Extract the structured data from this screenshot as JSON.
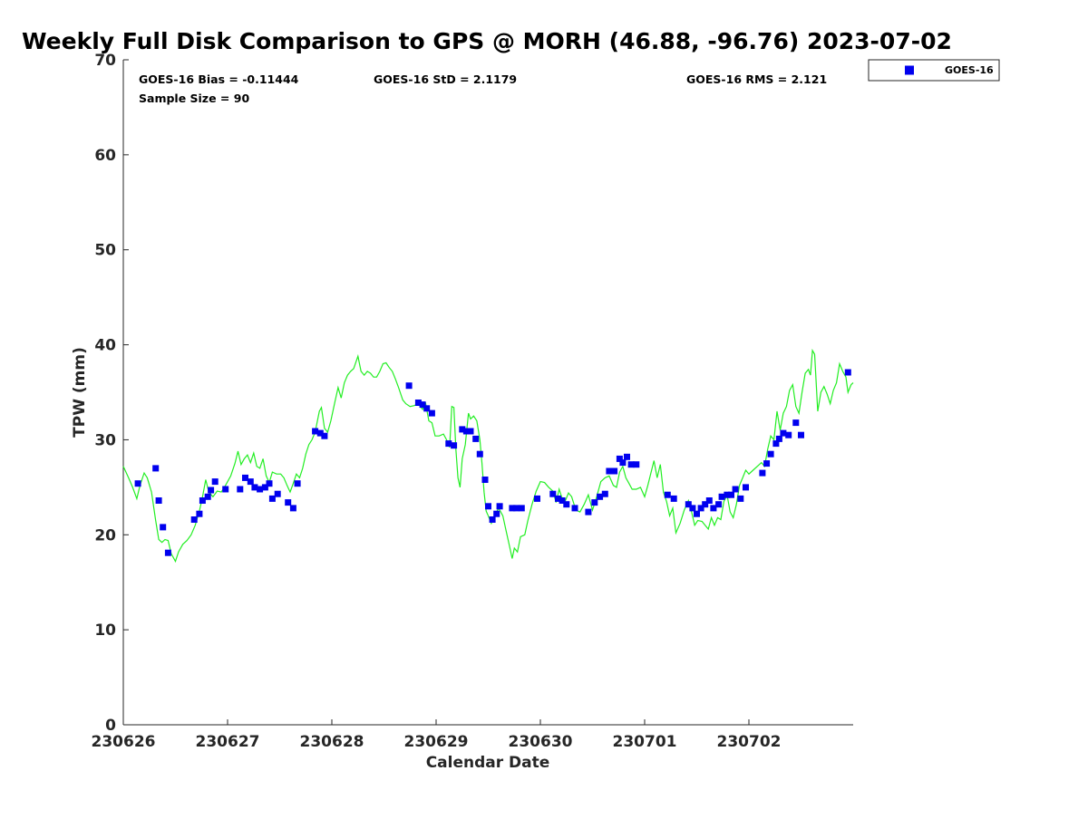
{
  "chart_data": {
    "type": "scatter",
    "title": "Weekly Full Disk Comparison to GPS @ MORH (46.88, -96.76) 2023-07-02",
    "xlabel": "Calendar Date",
    "ylabel": "TPW (mm)",
    "xlim": [
      0,
      7
    ],
    "ylim": [
      0,
      70
    ],
    "x_ticks": [
      0,
      1,
      2,
      3,
      4,
      5,
      6
    ],
    "x_tick_labels": [
      "230626",
      "230627",
      "230628",
      "230629",
      "230630",
      "230701",
      "230702"
    ],
    "y_ticks": [
      0,
      10,
      20,
      30,
      40,
      50,
      60,
      70
    ],
    "y_tick_labels": [
      "0",
      "10",
      "20",
      "30",
      "40",
      "50",
      "60",
      "70"
    ],
    "x_unit": "days since 230626 00:00 (start of 230626)",
    "stats": {
      "bias": "GOES-16 Bias = -0.11444",
      "std": "GOES-16 StD = 2.1179",
      "rms": "GOES-16 RMS = 2.121",
      "sample": "Sample Size = 90"
    },
    "legend": {
      "label": "GOES-16",
      "position": "outside-top-right"
    },
    "series": [
      {
        "name": "GOES-16",
        "kind": "scatter",
        "marker": "square",
        "color": "#0000ee",
        "points": [
          [
            0.14,
            25.4
          ],
          [
            0.31,
            27.0
          ],
          [
            0.34,
            23.6
          ],
          [
            0.38,
            20.8
          ],
          [
            0.43,
            18.1
          ],
          [
            0.68,
            21.6
          ],
          [
            0.73,
            22.2
          ],
          [
            0.76,
            23.6
          ],
          [
            0.81,
            24.0
          ],
          [
            0.84,
            24.7
          ],
          [
            0.88,
            25.6
          ],
          [
            0.98,
            24.8
          ],
          [
            1.12,
            24.8
          ],
          [
            1.17,
            26.0
          ],
          [
            1.22,
            25.6
          ],
          [
            1.26,
            25.0
          ],
          [
            1.31,
            24.8
          ],
          [
            1.36,
            25.0
          ],
          [
            1.4,
            25.4
          ],
          [
            1.43,
            23.8
          ],
          [
            1.48,
            24.3
          ],
          [
            1.58,
            23.4
          ],
          [
            1.63,
            22.8
          ],
          [
            1.67,
            25.4
          ],
          [
            1.84,
            30.9
          ],
          [
            1.89,
            30.7
          ],
          [
            1.93,
            30.4
          ],
          [
            2.74,
            35.7
          ],
          [
            2.83,
            33.9
          ],
          [
            2.87,
            33.7
          ],
          [
            2.91,
            33.3
          ],
          [
            2.96,
            32.8
          ],
          [
            3.12,
            29.6
          ],
          [
            3.17,
            29.4
          ],
          [
            3.25,
            31.1
          ],
          [
            3.29,
            30.9
          ],
          [
            3.33,
            30.9
          ],
          [
            3.38,
            30.1
          ],
          [
            3.42,
            28.5
          ],
          [
            3.47,
            25.8
          ],
          [
            3.5,
            23.0
          ],
          [
            3.54,
            21.6
          ],
          [
            3.58,
            22.2
          ],
          [
            3.61,
            23.0
          ],
          [
            3.73,
            22.8
          ],
          [
            3.77,
            22.8
          ],
          [
            3.82,
            22.8
          ],
          [
            3.97,
            23.8
          ],
          [
            4.12,
            24.3
          ],
          [
            4.17,
            23.8
          ],
          [
            4.21,
            23.6
          ],
          [
            4.25,
            23.2
          ],
          [
            4.33,
            22.8
          ],
          [
            4.46,
            22.4
          ],
          [
            4.52,
            23.4
          ],
          [
            4.57,
            24.0
          ],
          [
            4.62,
            24.3
          ],
          [
            4.66,
            26.7
          ],
          [
            4.71,
            26.7
          ],
          [
            4.76,
            28.0
          ],
          [
            4.79,
            27.6
          ],
          [
            4.83,
            28.2
          ],
          [
            4.87,
            27.4
          ],
          [
            4.92,
            27.4
          ],
          [
            5.22,
            24.2
          ],
          [
            5.28,
            23.8
          ],
          [
            5.42,
            23.2
          ],
          [
            5.46,
            22.8
          ],
          [
            5.5,
            22.2
          ],
          [
            5.54,
            22.8
          ],
          [
            5.58,
            23.2
          ],
          [
            5.62,
            23.6
          ],
          [
            5.66,
            22.8
          ],
          [
            5.71,
            23.2
          ],
          [
            5.74,
            24.0
          ],
          [
            5.79,
            24.2
          ],
          [
            5.83,
            24.2
          ],
          [
            5.87,
            24.8
          ],
          [
            5.92,
            23.8
          ],
          [
            5.97,
            25.0
          ],
          [
            6.13,
            26.5
          ],
          [
            6.17,
            27.5
          ],
          [
            6.21,
            28.5
          ],
          [
            6.26,
            29.6
          ],
          [
            6.29,
            30.1
          ],
          [
            6.33,
            30.7
          ],
          [
            6.38,
            30.5
          ],
          [
            6.45,
            31.8
          ],
          [
            6.5,
            30.5
          ],
          [
            6.95,
            37.1
          ]
        ]
      },
      {
        "name": "",
        "kind": "line",
        "color": "#22ee22",
        "points": [
          [
            0.0,
            27.2
          ],
          [
            0.05,
            26.0
          ],
          [
            0.09,
            25.0
          ],
          [
            0.13,
            23.8
          ],
          [
            0.16,
            25.2
          ],
          [
            0.2,
            26.5
          ],
          [
            0.23,
            26.0
          ],
          [
            0.27,
            24.5
          ],
          [
            0.31,
            21.5
          ],
          [
            0.34,
            19.5
          ],
          [
            0.37,
            19.2
          ],
          [
            0.4,
            19.5
          ],
          [
            0.43,
            19.4
          ],
          [
            0.46,
            18.0
          ],
          [
            0.5,
            17.2
          ],
          [
            0.53,
            18.2
          ],
          [
            0.57,
            19.0
          ],
          [
            0.61,
            19.4
          ],
          [
            0.65,
            20.0
          ],
          [
            0.69,
            21.0
          ],
          [
            0.73,
            22.5
          ],
          [
            0.76,
            24.0
          ],
          [
            0.79,
            25.8
          ],
          [
            0.82,
            24.5
          ],
          [
            0.86,
            24.0
          ],
          [
            0.9,
            24.6
          ],
          [
            0.94,
            24.5
          ],
          [
            0.98,
            25.2
          ],
          [
            1.03,
            26.2
          ],
          [
            1.07,
            27.5
          ],
          [
            1.1,
            28.8
          ],
          [
            1.13,
            27.4
          ],
          [
            1.16,
            28.0
          ],
          [
            1.19,
            28.4
          ],
          [
            1.22,
            27.6
          ],
          [
            1.25,
            28.6
          ],
          [
            1.28,
            27.2
          ],
          [
            1.31,
            27.0
          ],
          [
            1.34,
            28.0
          ],
          [
            1.37,
            26.2
          ],
          [
            1.4,
            25.5
          ],
          [
            1.43,
            26.6
          ],
          [
            1.47,
            26.4
          ],
          [
            1.51,
            26.4
          ],
          [
            1.54,
            26.0
          ],
          [
            1.57,
            25.2
          ],
          [
            1.6,
            24.5
          ],
          [
            1.63,
            25.4
          ],
          [
            1.66,
            26.4
          ],
          [
            1.69,
            26.0
          ],
          [
            1.72,
            27.0
          ],
          [
            1.75,
            28.5
          ],
          [
            1.78,
            29.5
          ],
          [
            1.81,
            30.0
          ],
          [
            1.84,
            30.8
          ],
          [
            1.88,
            33.0
          ],
          [
            1.9,
            33.4
          ],
          [
            1.93,
            31.2
          ],
          [
            1.96,
            30.8
          ],
          [
            1.99,
            32.0
          ],
          [
            2.03,
            34.0
          ],
          [
            2.06,
            35.5
          ],
          [
            2.09,
            34.4
          ],
          [
            2.12,
            36.0
          ],
          [
            2.15,
            36.8
          ],
          [
            2.18,
            37.2
          ],
          [
            2.21,
            37.5
          ],
          [
            2.25,
            38.8
          ],
          [
            2.28,
            37.2
          ],
          [
            2.31,
            36.8
          ],
          [
            2.34,
            37.2
          ],
          [
            2.37,
            37.0
          ],
          [
            2.4,
            36.6
          ],
          [
            2.43,
            36.6
          ],
          [
            2.46,
            37.2
          ],
          [
            2.49,
            38.0
          ],
          [
            2.52,
            38.1
          ],
          [
            2.55,
            37.6
          ],
          [
            2.58,
            37.2
          ],
          [
            2.61,
            36.4
          ],
          [
            2.64,
            35.5
          ],
          [
            2.68,
            34.2
          ],
          [
            2.71,
            33.8
          ],
          [
            2.75,
            33.5
          ],
          [
            2.79,
            33.6
          ],
          [
            2.83,
            33.8
          ],
          [
            2.87,
            33.2
          ],
          [
            2.9,
            33.8
          ],
          [
            2.93,
            32.0
          ],
          [
            2.96,
            31.8
          ],
          [
            2.99,
            30.4
          ],
          [
            3.03,
            30.4
          ],
          [
            3.07,
            30.6
          ],
          [
            3.1,
            30.0
          ],
          [
            3.13,
            29.2
          ],
          [
            3.15,
            33.5
          ],
          [
            3.17,
            33.4
          ],
          [
            3.19,
            29.0
          ],
          [
            3.21,
            26.0
          ],
          [
            3.23,
            25.0
          ],
          [
            3.25,
            28.0
          ],
          [
            3.28,
            29.5
          ],
          [
            3.31,
            32.8
          ],
          [
            3.33,
            32.2
          ],
          [
            3.36,
            32.5
          ],
          [
            3.39,
            32.0
          ],
          [
            3.42,
            30.0
          ],
          [
            3.44,
            27.5
          ],
          [
            3.46,
            24.5
          ],
          [
            3.48,
            22.5
          ],
          [
            3.5,
            22.0
          ],
          [
            3.53,
            21.2
          ],
          [
            3.56,
            22.0
          ],
          [
            3.6,
            22.8
          ],
          [
            3.64,
            22.0
          ],
          [
            3.67,
            20.5
          ],
          [
            3.7,
            19.0
          ],
          [
            3.73,
            17.5
          ],
          [
            3.75,
            18.6
          ],
          [
            3.78,
            18.2
          ],
          [
            3.81,
            19.8
          ],
          [
            3.85,
            20.0
          ],
          [
            3.88,
            21.5
          ],
          [
            3.92,
            23.2
          ],
          [
            3.96,
            24.6
          ],
          [
            4.0,
            25.6
          ],
          [
            4.04,
            25.5
          ],
          [
            4.08,
            25.0
          ],
          [
            4.12,
            24.6
          ],
          [
            4.15,
            23.4
          ],
          [
            4.18,
            24.8
          ],
          [
            4.21,
            23.8
          ],
          [
            4.24,
            23.6
          ],
          [
            4.27,
            24.4
          ],
          [
            4.3,
            24.0
          ],
          [
            4.34,
            22.6
          ],
          [
            4.38,
            22.4
          ],
          [
            4.42,
            23.2
          ],
          [
            4.46,
            24.2
          ],
          [
            4.5,
            22.6
          ],
          [
            4.54,
            24.0
          ],
          [
            4.58,
            25.6
          ],
          [
            4.62,
            26.0
          ],
          [
            4.66,
            26.2
          ],
          [
            4.7,
            25.2
          ],
          [
            4.73,
            25.0
          ],
          [
            4.76,
            26.6
          ],
          [
            4.79,
            27.2
          ],
          [
            4.82,
            26.0
          ],
          [
            4.85,
            25.4
          ],
          [
            4.88,
            24.8
          ],
          [
            4.92,
            24.8
          ],
          [
            4.96,
            25.0
          ],
          [
            5.0,
            24.0
          ],
          [
            5.03,
            25.2
          ],
          [
            5.06,
            26.5
          ],
          [
            5.09,
            27.8
          ],
          [
            5.12,
            26.0
          ],
          [
            5.15,
            27.4
          ],
          [
            5.18,
            24.5
          ],
          [
            5.21,
            23.5
          ],
          [
            5.24,
            22.0
          ],
          [
            5.27,
            22.8
          ],
          [
            5.3,
            20.2
          ],
          [
            5.34,
            21.2
          ],
          [
            5.38,
            22.6
          ],
          [
            5.42,
            23.6
          ],
          [
            5.45,
            22.4
          ],
          [
            5.48,
            21.0
          ],
          [
            5.51,
            21.5
          ],
          [
            5.55,
            21.4
          ],
          [
            5.58,
            21.0
          ],
          [
            5.61,
            20.6
          ],
          [
            5.64,
            21.8
          ],
          [
            5.67,
            21.0
          ],
          [
            5.7,
            21.8
          ],
          [
            5.73,
            21.6
          ],
          [
            5.76,
            23.5
          ],
          [
            5.79,
            24.2
          ],
          [
            5.82,
            22.4
          ],
          [
            5.85,
            21.8
          ],
          [
            5.88,
            23.2
          ],
          [
            5.91,
            25.2
          ],
          [
            5.94,
            26.0
          ],
          [
            5.97,
            26.8
          ],
          [
            6.0,
            26.4
          ],
          [
            6.04,
            26.8
          ],
          [
            6.08,
            27.2
          ],
          [
            6.12,
            27.6
          ],
          [
            6.15,
            27.2
          ],
          [
            6.18,
            29.0
          ],
          [
            6.21,
            30.4
          ],
          [
            6.24,
            30.0
          ],
          [
            6.27,
            33.0
          ],
          [
            6.3,
            31.0
          ],
          [
            6.33,
            32.8
          ],
          [
            6.36,
            33.5
          ],
          [
            6.39,
            35.2
          ],
          [
            6.42,
            35.8
          ],
          [
            6.45,
            33.5
          ],
          [
            6.48,
            32.8
          ],
          [
            6.51,
            35.0
          ],
          [
            6.54,
            37.0
          ],
          [
            6.57,
            37.4
          ],
          [
            6.59,
            36.8
          ],
          [
            6.61,
            39.4
          ],
          [
            6.63,
            39.0
          ],
          [
            6.66,
            33.0
          ],
          [
            6.69,
            35.0
          ],
          [
            6.72,
            35.6
          ],
          [
            6.75,
            34.8
          ],
          [
            6.78,
            33.8
          ],
          [
            6.81,
            35.2
          ],
          [
            6.84,
            36.0
          ],
          [
            6.87,
            38.0
          ],
          [
            6.9,
            37.2
          ],
          [
            6.93,
            36.6
          ],
          [
            6.95,
            35.0
          ],
          [
            6.98,
            35.8
          ],
          [
            7.0,
            36.0
          ]
        ]
      }
    ]
  }
}
